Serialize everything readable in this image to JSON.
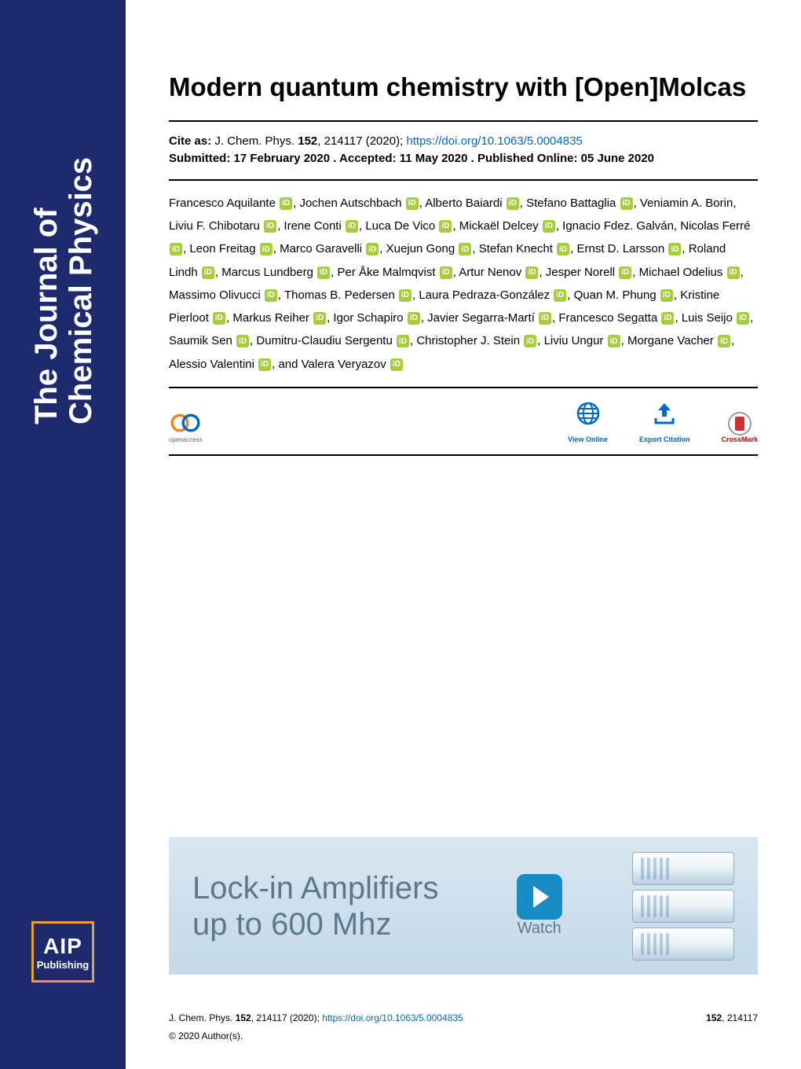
{
  "sidebar": {
    "journal_title_line1": "The Journal of",
    "journal_title_line2": "Chemical Physics",
    "publisher_abbrev": "AIP",
    "publisher_sub": "Publishing"
  },
  "article": {
    "title": "Modern quantum chemistry with [Open]Molcas",
    "cite_label": "Cite as:",
    "cite_text": " J. Chem. Phys. ",
    "cite_volume": "152",
    "cite_rest": ", 214117 (2020); ",
    "doi_url": "https://doi.org/10.1063/5.0004835",
    "submission_line": "Submitted: 17 February 2020 . Accepted: 11 May 2020 . Published Online: 05 June 2020",
    "authors": [
      "Francesco Aquilante",
      "Jochen Autschbach",
      "Alberto Baiardi",
      "Stefano Battaglia",
      "Veniamin A. Borin",
      "Liviu F. Chibotaru",
      "Irene Conti",
      "Luca De Vico",
      "Mickaël Delcey",
      "Ignacio Fdez. Galván",
      "Nicolas Ferré",
      "Leon Freitag",
      "Marco Garavelli",
      "Xuejun Gong",
      "Stefan Knecht",
      "Ernst D. Larsson",
      "Roland Lindh",
      "Marcus Lundberg",
      "Per Åke Malmqvist",
      "Artur Nenov",
      "Jesper Norell",
      "Michael Odelius",
      "Massimo Olivucci",
      "Thomas B. Pedersen",
      "Laura Pedraza-González",
      "Quan M. Phung",
      "Kristine Pierloot",
      "Markus Reiher",
      "Igor Schapiro",
      "Javier Segarra-Martí",
      "Francesco Segatta",
      "Luis Seijo",
      "Saumik Sen",
      "Dumitru-Claudiu Sergentu",
      "Christopher J. Stein",
      "Liviu Ungur",
      "Morgane Vacher",
      "Alessio Valentini",
      "Valera Veryazov"
    ],
    "no_orcid_indices": [
      4,
      9
    ],
    "last_connector": "and "
  },
  "badges": {
    "openaccess_label": "openaccess",
    "view_online": "View Online",
    "export_citation": "Export Citation",
    "crossmark": "CrossMark"
  },
  "ad": {
    "line1": "Lock-in Amplifiers",
    "line2": "up to 600 Mhz",
    "watch": "Watch"
  },
  "footer": {
    "journal_ref": "J. Chem. Phys. ",
    "volume": "152",
    "rest": ", 214117 (2020); ",
    "doi": "https://doi.org/10.1063/5.0004835",
    "right_vol": "152",
    "right_rest": ", 214117",
    "copyright": "© 2020 Author(s)."
  },
  "colors": {
    "sidebar_bg": "#1e2a6e",
    "link": "#0068c4",
    "orcid": "#a6ce39",
    "aip_border": "#e8a032"
  }
}
